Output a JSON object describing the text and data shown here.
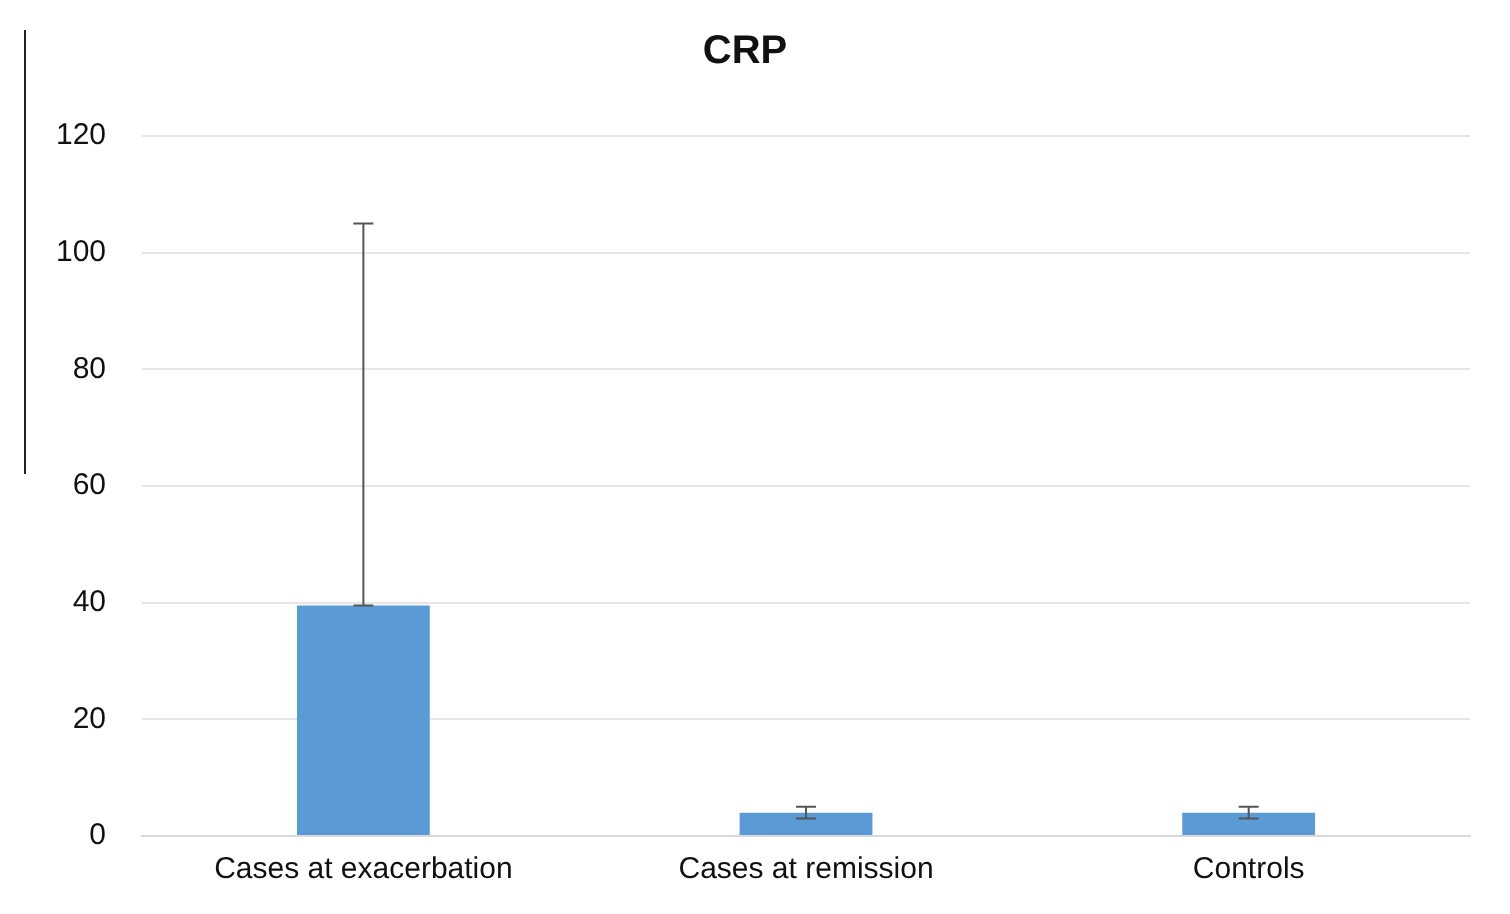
{
  "chart_data": {
    "type": "bar",
    "title": "CRP",
    "categories": [
      "Cases at exacerbation",
      "Cases at remission",
      "Controls"
    ],
    "values": [
      39.5,
      4,
      4
    ],
    "errors": [
      [
        39.5,
        105
      ],
      1,
      1
    ],
    "color": "#5b9bd5",
    "ylim": [
      0,
      120
    ],
    "yticks": [
      0,
      20,
      40,
      60,
      80,
      100,
      120
    ],
    "grid": "y"
  }
}
